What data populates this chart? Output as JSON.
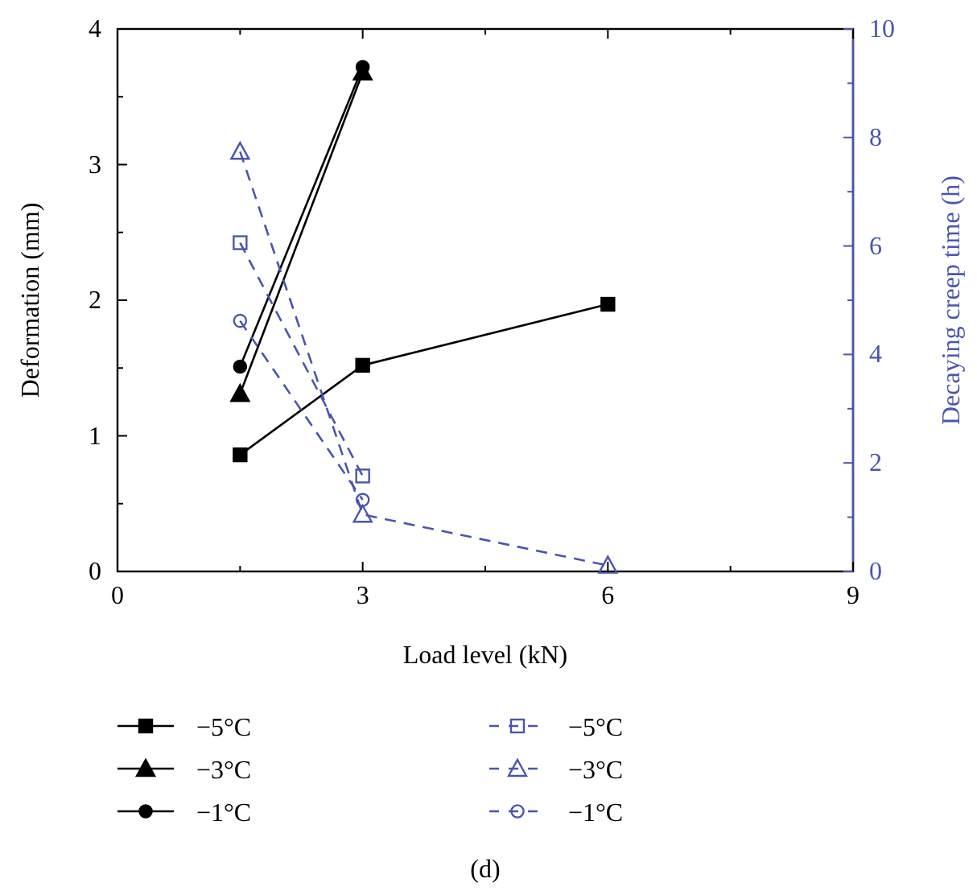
{
  "chart_data": {
    "type": "line",
    "xlabel": "Load level (kN)",
    "ylabel": "Deformation (mm)",
    "y2label": "Decaying creep time (h)",
    "xlim": [
      0,
      9
    ],
    "xticks": [
      0,
      {
        "value": 1.5,
        "label": null
      },
      3,
      {
        "value": 4.5,
        "label": null
      },
      6,
      {
        "value": 7.5,
        "label": null
      },
      9
    ],
    "ylim": [
      0,
      4
    ],
    "yticks": [
      0,
      {
        "value": 0.5,
        "label": null
      },
      1,
      {
        "value": 1.5,
        "label": null
      },
      2,
      {
        "value": 2.5,
        "label": null
      },
      3,
      {
        "value": 3.5,
        "label": null
      },
      4
    ],
    "y2lim": [
      0,
      10
    ],
    "y2ticks": [
      0,
      {
        "value": 1,
        "label": null
      },
      2,
      {
        "value": 3,
        "label": null
      },
      4,
      {
        "value": 5,
        "label": null
      },
      6,
      {
        "value": 7,
        "label": null
      },
      8,
      {
        "value": 9,
        "label": null
      },
      10
    ],
    "legend": "bottom",
    "grid": false,
    "annotations": [
      "(d)"
    ],
    "series": [
      {
        "name": "−5°C",
        "color": "#000000",
        "x": [
          1.5,
          3,
          6
        ],
        "values": [
          0.86,
          1.52,
          1.97
        ],
        "marker": "square",
        "line_style": "solid"
      },
      {
        "name": "−3°C",
        "color": "#000000",
        "x": [
          1.5,
          3
        ],
        "values": [
          1.31,
          3.68
        ],
        "marker": "triangle",
        "line_style": "solid"
      },
      {
        "name": "−1°C",
        "color": "#000000",
        "x": [
          1.5,
          3
        ],
        "values": [
          1.51,
          3.72
        ],
        "marker": "circle",
        "line_style": "solid"
      },
      {
        "name": "−5°C",
        "color": "#4a55b0",
        "axis": "y2",
        "x": [
          1.5,
          3
        ],
        "values": [
          6.06,
          1.76
        ],
        "marker": "square",
        "line_style": "dashed"
      },
      {
        "name": "−3°C",
        "color": "#4a55b0",
        "axis": "y2",
        "x": [
          1.5,
          3,
          6
        ],
        "values": [
          7.74,
          1.05,
          0.11
        ],
        "marker": "triangle",
        "line_style": "dashed"
      },
      {
        "name": "−1°C",
        "color": "#4a55b0",
        "axis": "y2",
        "x": [
          1.5,
          3
        ],
        "values": [
          4.62,
          1.32
        ],
        "marker": "circle",
        "line_style": "dashed"
      }
    ]
  }
}
